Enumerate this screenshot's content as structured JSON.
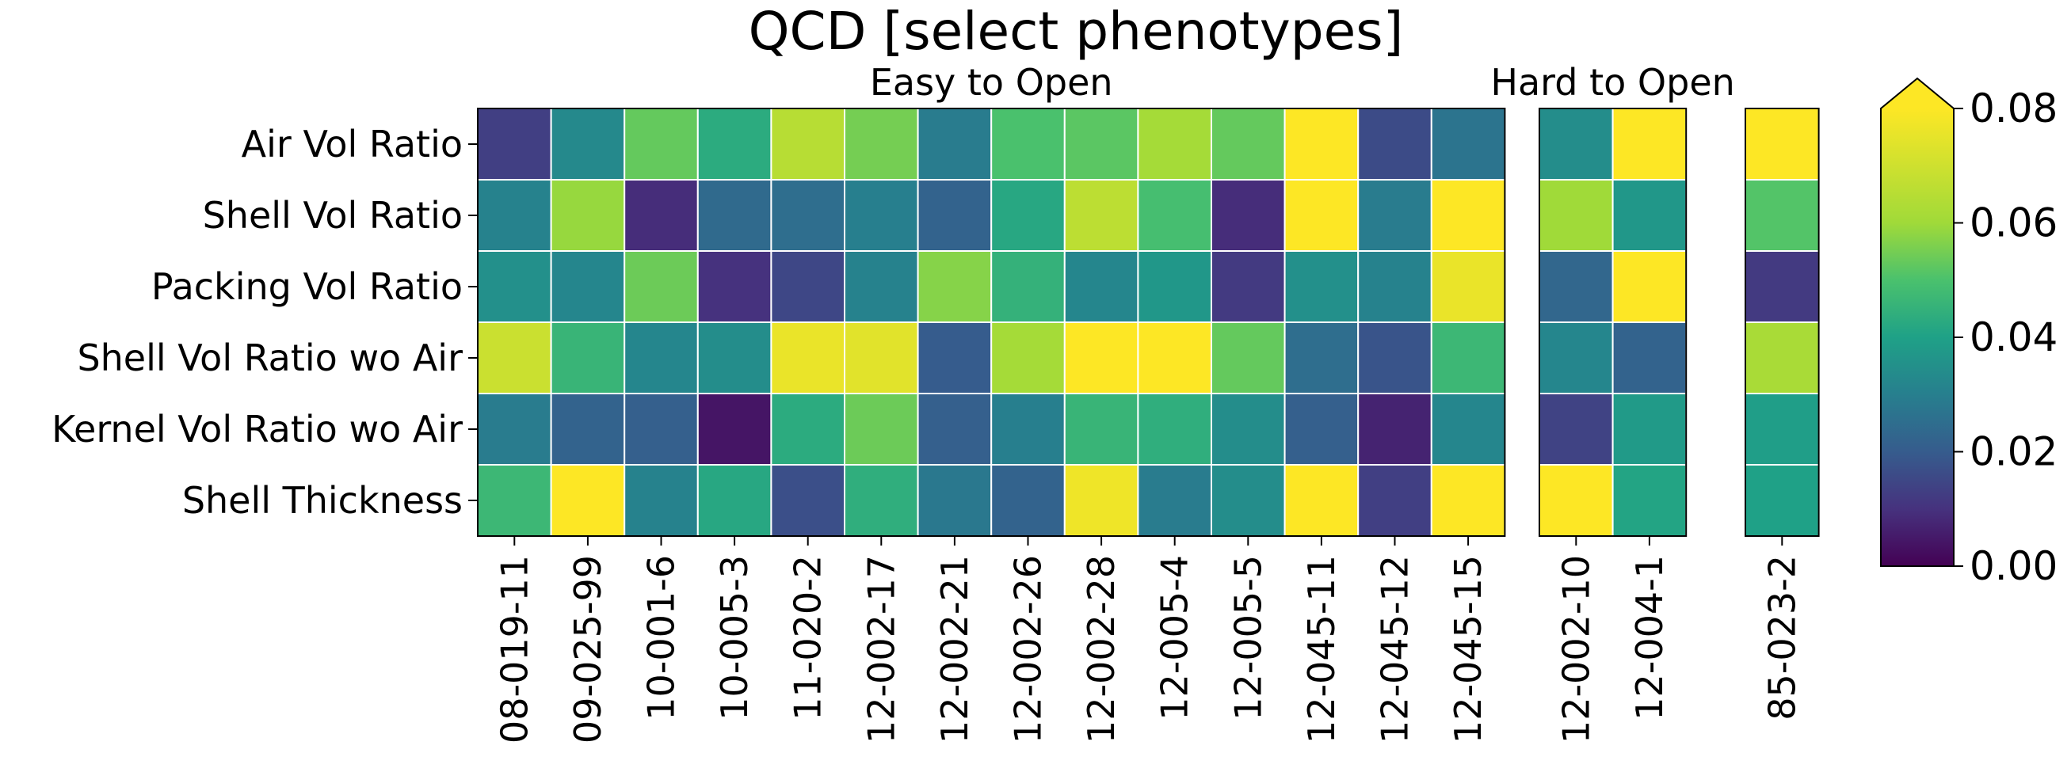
{
  "chart_data": {
    "type": "heatmap",
    "title": "QCD [select phenotypes]",
    "rows": [
      "Air Vol Ratio",
      "Shell Vol Ratio",
      "Packing Vol Ratio",
      "Shell Vol Ratio wo Air",
      "Kernel Vol Ratio wo Air",
      "Shell Thickness"
    ],
    "panels": [
      {
        "title": "Easy to Open",
        "columns": [
          "08-019-11",
          "09-025-99",
          "10-001-6",
          "10-005-3",
          "11-020-2",
          "12-002-17",
          "12-002-21",
          "12-002-26",
          "12-002-28",
          "12-005-4",
          "12-005-5",
          "12-045-11",
          "12-045-12",
          "12-045-15"
        ],
        "values": [
          [
            0.013,
            0.033,
            0.053,
            0.043,
            0.065,
            0.055,
            0.029,
            0.05,
            0.052,
            0.061,
            0.053,
            0.082,
            0.016,
            0.027
          ],
          [
            0.031,
            0.059,
            0.009,
            0.024,
            0.025,
            0.03,
            0.022,
            0.042,
            0.066,
            0.049,
            0.009,
            0.082,
            0.029,
            0.081
          ],
          [
            0.035,
            0.032,
            0.054,
            0.01,
            0.015,
            0.031,
            0.057,
            0.045,
            0.032,
            0.037,
            0.012,
            0.035,
            0.031,
            0.076
          ],
          [
            0.069,
            0.046,
            0.032,
            0.034,
            0.076,
            0.074,
            0.02,
            0.061,
            0.082,
            0.082,
            0.053,
            0.025,
            0.018,
            0.047
          ],
          [
            0.029,
            0.022,
            0.021,
            0.004,
            0.043,
            0.054,
            0.021,
            0.03,
            0.046,
            0.044,
            0.034,
            0.021,
            0.007,
            0.032
          ],
          [
            0.047,
            0.082,
            0.031,
            0.042,
            0.017,
            0.044,
            0.028,
            0.022,
            0.077,
            0.029,
            0.034,
            0.082,
            0.013,
            0.082
          ]
        ]
      },
      {
        "title": "Hard to Open",
        "columns": [
          "12-002-10",
          "12-004-1"
        ],
        "values": [
          [
            0.034,
            0.082
          ],
          [
            0.06,
            0.037
          ],
          [
            0.023,
            0.082
          ],
          [
            0.032,
            0.022
          ],
          [
            0.014,
            0.038
          ],
          [
            0.082,
            0.041
          ]
        ]
      },
      {
        "title": "",
        "columns": [
          "85-023-2"
        ],
        "values": [
          [
            0.082
          ],
          [
            0.051
          ],
          [
            0.012
          ],
          [
            0.062
          ],
          [
            0.039
          ],
          [
            0.04
          ]
        ]
      }
    ],
    "colorbar": {
      "colormap": "viridis",
      "vmin": 0.0,
      "vmax": 0.08,
      "extend": "max",
      "ticks": [
        "0.00",
        "0.02",
        "0.04",
        "0.06",
        "0.08"
      ]
    },
    "grid": false
  }
}
